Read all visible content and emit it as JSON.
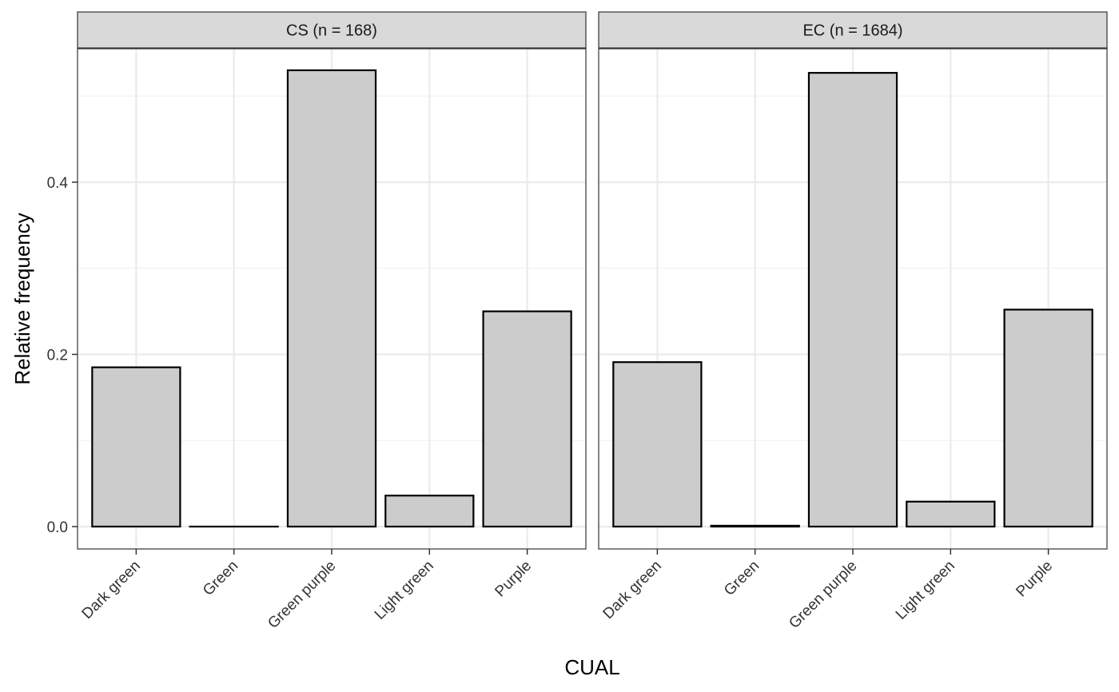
{
  "chart_data": {
    "type": "bar",
    "xlabel": "CUAL",
    "ylabel": "Relative frequency",
    "ylim": [
      -0.026,
      0.555
    ],
    "yticks": [
      0.0,
      0.2,
      0.4
    ],
    "ytick_labels": [
      "0.0",
      "0.2",
      "0.4"
    ],
    "categories": [
      "Dark green",
      "Green",
      "Green purple",
      "Light green",
      "Purple"
    ],
    "grid": true,
    "bar_fill": "#cccccc",
    "bar_stroke": "#000000",
    "panels": [
      {
        "strip": "CS (n = 168)",
        "values": [
          0.185,
          0.0,
          0.53,
          0.036,
          0.25
        ]
      },
      {
        "strip": "EC (n = 1684)",
        "values": [
          0.191,
          0.001,
          0.527,
          0.029,
          0.252
        ]
      }
    ]
  }
}
